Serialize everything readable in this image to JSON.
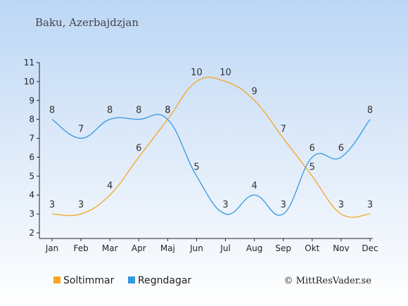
{
  "chart_data": {
    "type": "line",
    "title": "Baku, Azerbajdzjan",
    "categories": [
      "Jan",
      "Feb",
      "Mar",
      "Apr",
      "Maj",
      "Jun",
      "Jul",
      "Aug",
      "Sep",
      "Okt",
      "Nov",
      "Dec"
    ],
    "ylim": [
      2,
      11
    ],
    "yticks": [
      2,
      3,
      4,
      5,
      6,
      7,
      8,
      9,
      10,
      11
    ],
    "grid": false,
    "legend_position": "bottom",
    "series": [
      {
        "name": "Soltimmar",
        "color": "#f5a623",
        "values": [
          3,
          3,
          4,
          6,
          8,
          10,
          10,
          9,
          7,
          5,
          3,
          3
        ]
      },
      {
        "name": "Regndagar",
        "color": "#3498e0",
        "values": [
          8,
          7,
          8,
          8,
          8,
          5,
          3,
          4,
          3,
          6,
          6,
          8
        ]
      }
    ],
    "credit": "© MittResVader.se"
  }
}
